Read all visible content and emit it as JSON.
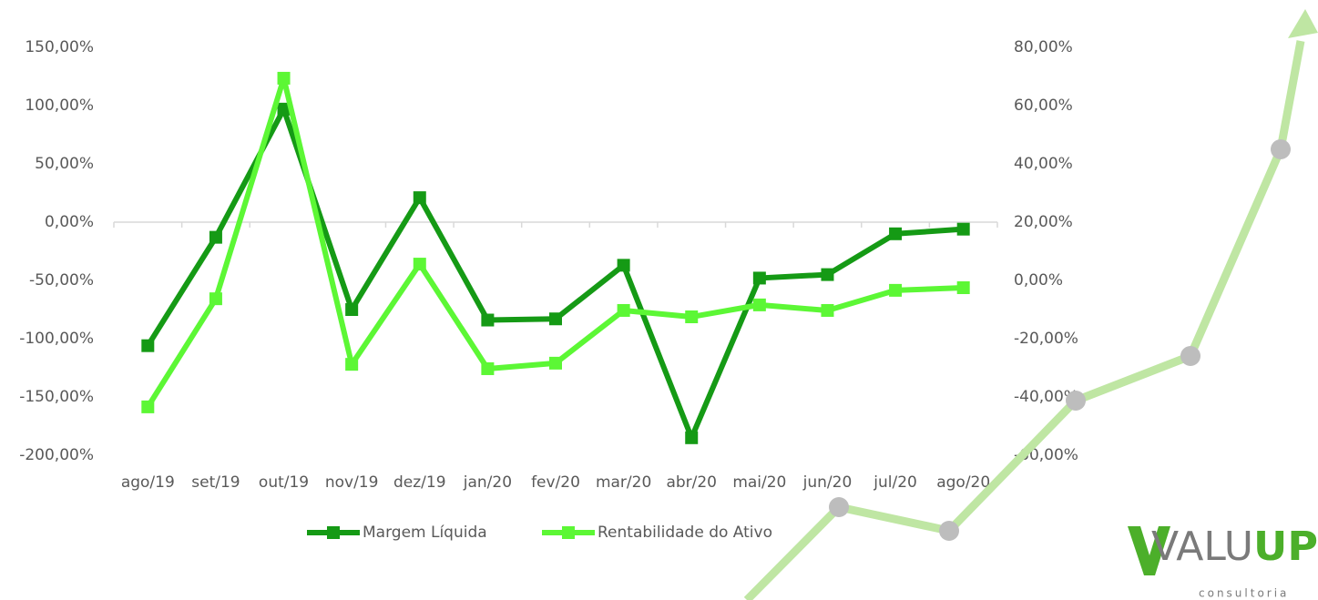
{
  "chart_data": {
    "type": "line",
    "categories": [
      "ago/19",
      "set/19",
      "out/19",
      "nov/19",
      "dez/19",
      "jan/20",
      "fev/20",
      "mar/20",
      "abr/20",
      "mai/20",
      "jun/20",
      "jul/20",
      "ago/20"
    ],
    "series": [
      {
        "name": "Margem Líquida",
        "color": "#159a15",
        "axis": "y",
        "values": [
          -106,
          -13,
          97,
          -75,
          21,
          -84,
          -83,
          -37,
          -185,
          -48,
          -45,
          -10,
          -6
        ]
      },
      {
        "name": "Rentabilidade do Ativo",
        "color": "#5cf735",
        "axis": "y2",
        "values": [
          -43.4,
          -6.3,
          69.4,
          -28.8,
          5.6,
          -30.3,
          -28.4,
          -10.3,
          -12.5,
          -8.4,
          -10.3,
          -3.4,
          -2.5
        ]
      }
    ],
    "ylim": [
      -200,
      150
    ],
    "yticks": [
      {
        "value": -200,
        "label": "-200,00%"
      },
      {
        "value": -150,
        "label": "-150,00%"
      },
      {
        "value": -100,
        "label": "-100,00%"
      },
      {
        "value": -50,
        "label": "-50,00%"
      },
      {
        "value": 0,
        "label": "0,00%"
      },
      {
        "value": 50,
        "label": "50,00%"
      },
      {
        "value": 100,
        "label": "100,00%"
      },
      {
        "value": 150,
        "label": "150,00%"
      }
    ],
    "y2lim": [
      -60,
      80
    ],
    "y2ticks": [
      {
        "value": -60,
        "label": "-60,00%"
      },
      {
        "value": -40,
        "label": "-40,00%"
      },
      {
        "value": -20,
        "label": "-20,00%"
      },
      {
        "value": 0,
        "label": "0,00%"
      },
      {
        "value": 20,
        "label": "20,00%"
      },
      {
        "value": 40,
        "label": "40,00%"
      },
      {
        "value": 60,
        "label": "60,00%"
      },
      {
        "value": 80,
        "label": "80,00%"
      }
    ],
    "legend": "bottom"
  },
  "logo": {
    "parts": [
      "VALU",
      "UP"
    ],
    "tagline": "consultoria"
  }
}
